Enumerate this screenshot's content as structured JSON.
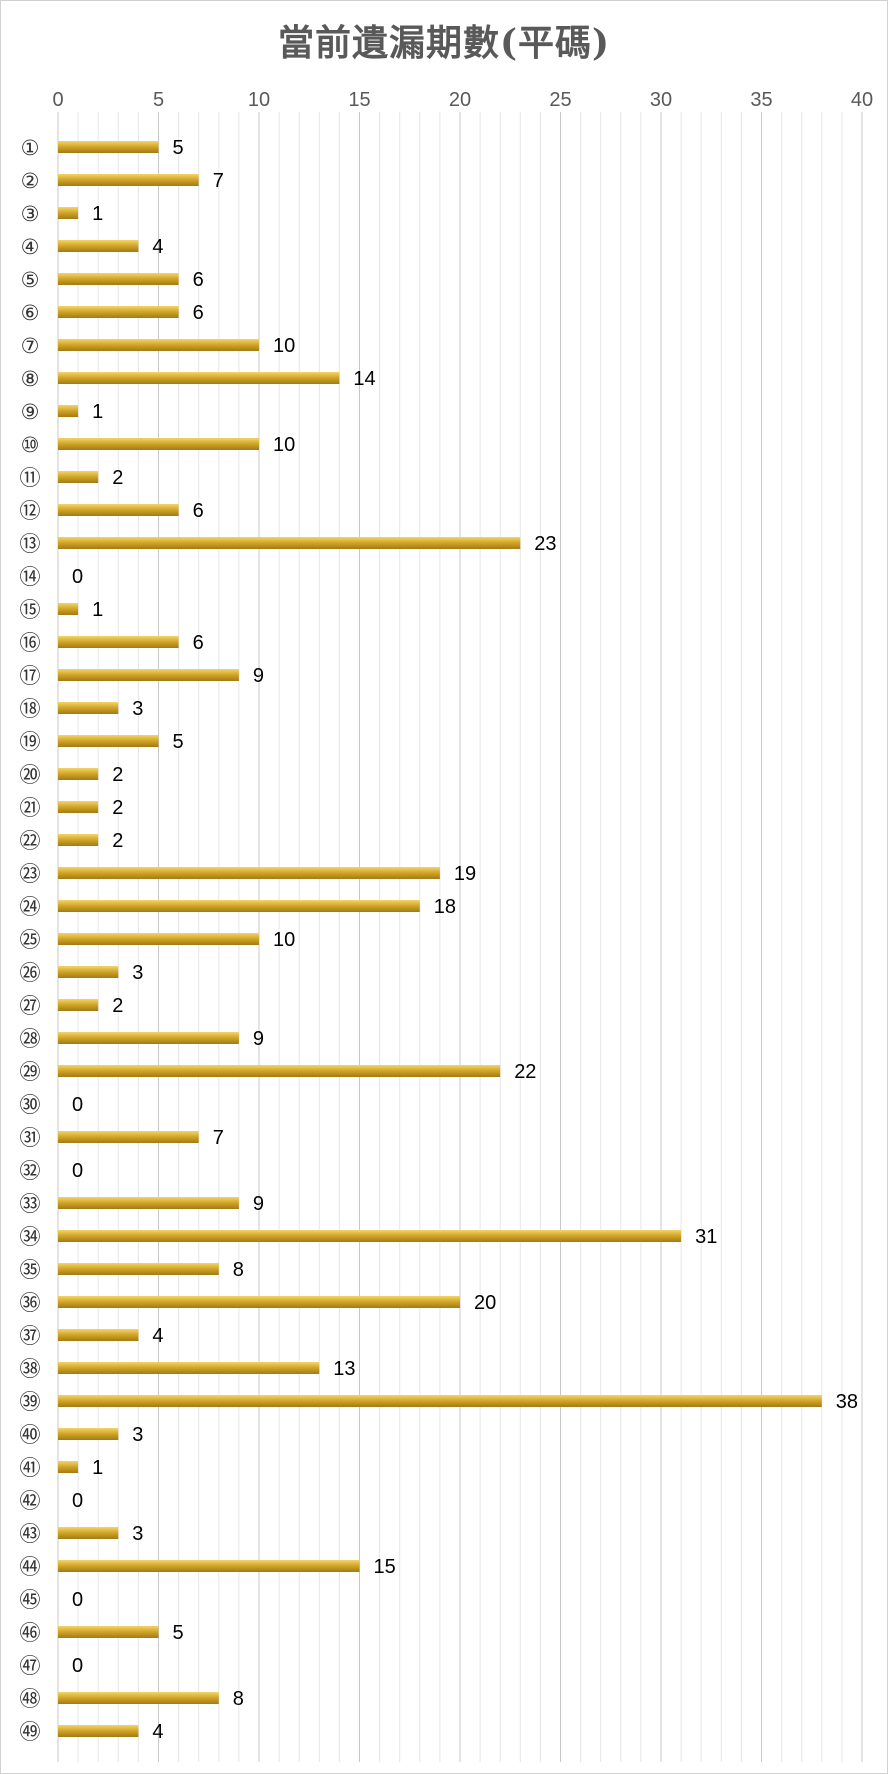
{
  "chart_data": {
    "type": "bar",
    "orientation": "horizontal",
    "title": "當前遺漏期數(平碼)",
    "xlim": [
      0,
      40
    ],
    "x_ticks": [
      0,
      5,
      10,
      15,
      20,
      25,
      30,
      35,
      40
    ],
    "axis_position": "top",
    "grid": true,
    "bar_color": "#D4A82A",
    "bar_highlight_color": "#F2D46B",
    "bar_shadow_color": "#A27A12",
    "categories": [
      "①",
      "②",
      "③",
      "④",
      "⑤",
      "⑥",
      "⑦",
      "⑧",
      "⑨",
      "⑩",
      "⑪",
      "⑫",
      "⑬",
      "⑭",
      "⑮",
      "⑯",
      "⑰",
      "⑱",
      "⑲",
      "⑳",
      "㉑",
      "㉒",
      "㉓",
      "㉔",
      "㉕",
      "㉖",
      "㉗",
      "㉘",
      "㉙",
      "㉚",
      "㉛",
      "㉜",
      "㉝",
      "㉞",
      "㉟",
      "㊱",
      "㊲",
      "㊳",
      "㊴",
      "㊵",
      "㊶",
      "㊷",
      "㊸",
      "㊹",
      "㊺",
      "㊻",
      "㊼",
      "㊽",
      "㊾"
    ],
    "values": [
      5,
      7,
      1,
      4,
      6,
      6,
      10,
      14,
      1,
      10,
      2,
      6,
      23,
      0,
      1,
      6,
      9,
      3,
      5,
      2,
      2,
      2,
      19,
      18,
      10,
      3,
      2,
      9,
      22,
      0,
      7,
      0,
      9,
      31,
      8,
      20,
      4,
      13,
      38,
      3,
      1,
      0,
      3,
      15,
      0,
      5,
      0,
      8,
      4
    ]
  }
}
